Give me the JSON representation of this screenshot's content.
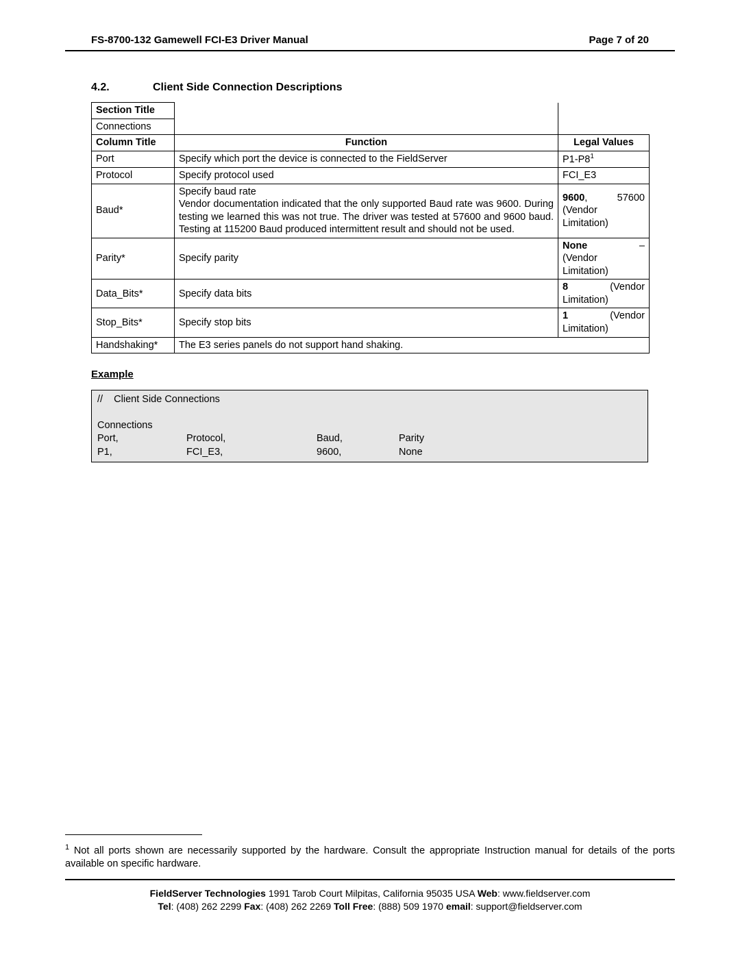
{
  "header": {
    "left": "FS-8700-132 Gamewell FCI-E3 Driver Manual",
    "right": "Page 7 of 20"
  },
  "section": {
    "number": "4.2.",
    "title": "Client Side Connection Descriptions"
  },
  "table": {
    "section_title_label": "Section Title",
    "section_title_value": "Connections",
    "column_title_label": "Column Title",
    "function_label": "Function",
    "legal_values_label": "Legal Values",
    "rows": [
      {
        "col": "Port",
        "func": "Specify which port the device is connected to the FieldServer",
        "legal_a": "P1-P8",
        "legal_sup": "1"
      },
      {
        "col": "Protocol",
        "func": "Specify protocol used",
        "legal_a": "FCI_E3"
      },
      {
        "col": "Baud*",
        "func": "Specify baud rate\nVendor documentation indicated that the only supported Baud rate was 9600. During testing we learned this was not true. The driver was tested at 57600 and 9600 baud. Testing at 115200 Baud produced intermittent result and should not be used.",
        "legal_line1_a": "9600",
        "legal_line1_b": "57600",
        "legal_line2": "(Vendor Limitation)"
      },
      {
        "col": "Parity*",
        "func": "Specify parity",
        "legal_line1_a": "None",
        "legal_line1_b": "–",
        "legal_line2": "(Vendor Limitation)"
      },
      {
        "col": "Data_Bits*",
        "func": "Specify data bits",
        "legal_line1_a": "8",
        "legal_line1_b": "(Vendor",
        "legal_line2": "Limitation)"
      },
      {
        "col": "Stop_Bits*",
        "func": "Specify stop bits",
        "legal_line1_a": "1",
        "legal_line1_b": "(Vendor",
        "legal_line2": "Limitation)"
      },
      {
        "col": "Handshaking*",
        "func": "The E3 series panels do not support hand shaking.",
        "colspan": true
      }
    ]
  },
  "example": {
    "heading": "Example",
    "comment": "//    Client Side Connections",
    "blank": " ",
    "rows": [
      [
        "Connections",
        "",
        "",
        ""
      ],
      [
        "Port,",
        "Protocol,",
        "Baud,",
        "Parity"
      ],
      [
        "P1,",
        "FCI_E3,",
        "9600,",
        "None"
      ]
    ],
    "col_widths": [
      "130px",
      "190px",
      "120px",
      "auto"
    ]
  },
  "footnote": {
    "sup": "1",
    "text": " Not all ports shown are necessarily supported by the hardware. Consult the appropriate Instruction manual for details of the ports available on specific hardware."
  },
  "footer": {
    "line1_b1": "FieldServer Technologies",
    "line1_t1": " 1991 Tarob Court Milpitas, California 95035 USA   ",
    "line1_b2": "Web",
    "line1_t2": ": www.fieldserver.com",
    "line2_b1": "Tel",
    "line2_t1": ": (408) 262 2299   ",
    "line2_b2": "Fax",
    "line2_t2": ": (408) 262 2269   ",
    "line2_b3": "Toll Free",
    "line2_t3": ": (888) 509 1970   ",
    "line2_b4": "email",
    "line2_t4": ": support@fieldserver.com"
  }
}
